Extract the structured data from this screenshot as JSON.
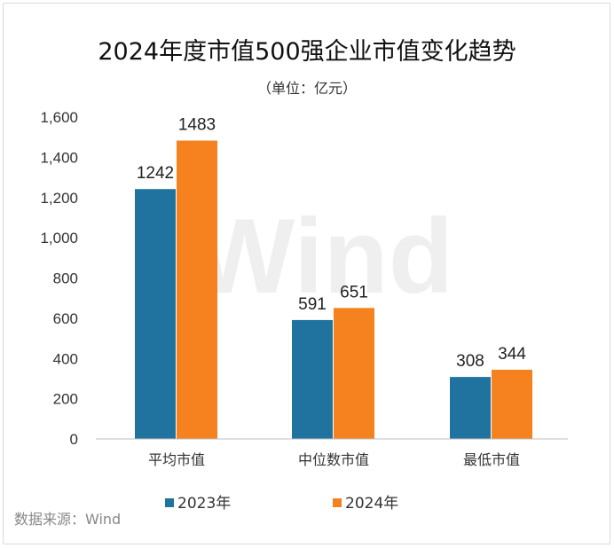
{
  "chart_data": {
    "type": "bar",
    "title": "2024年度市值500强企业市值变化趋势",
    "subtitle": "（单位：亿元）",
    "categories": [
      "平均市值",
      "中位数市值",
      "最低市值"
    ],
    "series": [
      {
        "name": "2023年",
        "color": "#20739E",
        "values": [
          1242,
          591,
          308
        ]
      },
      {
        "name": "2024年",
        "color": "#F5821F",
        "values": [
          1483,
          651,
          344
        ]
      }
    ],
    "ylim": [
      0,
      1600
    ],
    "yticks": [
      "0",
      "200",
      "400",
      "600",
      "800",
      "1,000",
      "1,200",
      "1,400",
      "1,600"
    ],
    "ytick_values": [
      0,
      200,
      400,
      600,
      800,
      1000,
      1200,
      1400,
      1600
    ],
    "grid": false,
    "legend": "bottom"
  },
  "source": "数据来源：Wind",
  "watermark": "Wind"
}
